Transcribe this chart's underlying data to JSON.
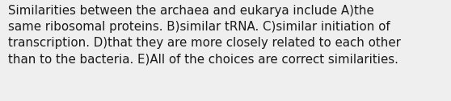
{
  "line1": "Similarities between the archaea and eukarya include A)the",
  "line2": "same ribosomal proteins. B)similar tRNA. C)similar initiation of",
  "line3": "transcription. D)that they are more closely related to each other",
  "line4": "than to the bacteria. E)All of the choices are correct similarities.",
  "background_color": "#efefef",
  "text_color": "#1a1a1a",
  "font_size": 10.8,
  "fig_width": 5.58,
  "fig_height": 1.26,
  "dpi": 100
}
